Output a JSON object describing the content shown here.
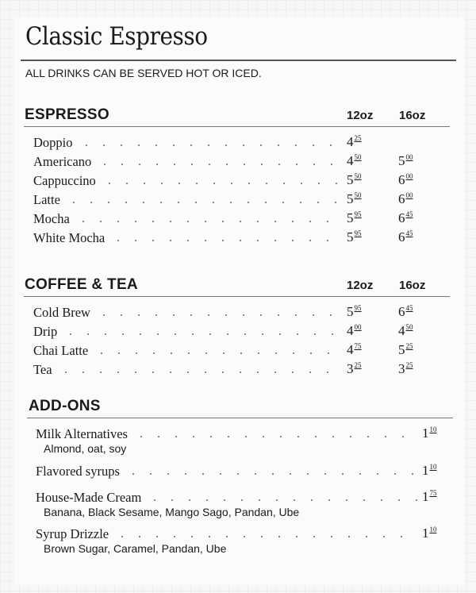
{
  "title": "Classic Espresso",
  "subtitle": "ALL DRINKS CAN BE SERVED HOT OR ICED.",
  "sections": [
    {
      "heading": "ESPRESSO",
      "col1": "12oz",
      "col2": "16oz",
      "items": [
        {
          "name": "Doppio",
          "p12": [
            "4",
            "25"
          ],
          "p16": null
        },
        {
          "name": "Americano",
          "p12": [
            "4",
            "50"
          ],
          "p16": [
            "5",
            "00"
          ]
        },
        {
          "name": "Cappuccino",
          "p12": [
            "5",
            "50"
          ],
          "p16": [
            "6",
            "00"
          ]
        },
        {
          "name": "Latte",
          "p12": [
            "5",
            "50"
          ],
          "p16": [
            "6",
            "00"
          ]
        },
        {
          "name": "Mocha",
          "p12": [
            "5",
            "95"
          ],
          "p16": [
            "6",
            "45"
          ]
        },
        {
          "name": "White Mocha",
          "p12": [
            "5",
            "95"
          ],
          "p16": [
            "6",
            "45"
          ]
        }
      ]
    },
    {
      "heading": "COFFEE & TEA",
      "col1": "12oz",
      "col2": "16oz",
      "items": [
        {
          "name": "Cold Brew",
          "p12": [
            "5",
            "95"
          ],
          "p16": [
            "6",
            "45"
          ]
        },
        {
          "name": "Drip",
          "p12": [
            "4",
            "00"
          ],
          "p16": [
            "4",
            "50"
          ]
        },
        {
          "name": "Chai Latte",
          "p12": [
            "4",
            "75"
          ],
          "p16": [
            "5",
            "25"
          ]
        },
        {
          "name": "Tea",
          "p12": [
            "3",
            "25"
          ],
          "p16": [
            "3",
            "25"
          ]
        }
      ]
    }
  ],
  "addons": {
    "heading": "ADD-ONS",
    "items": [
      {
        "name": "Milk Alternatives",
        "desc": "Almond, oat, soy",
        "price": [
          "1",
          "10"
        ]
      },
      {
        "name": "Flavored syrups",
        "desc": "",
        "price": [
          "1",
          "10"
        ]
      },
      {
        "name": "House-Made Cream",
        "desc": "Banana, Black Sesame, Mango Sago, Pandan, Ube",
        "price": [
          "1",
          "75"
        ]
      },
      {
        "name": "Syrup Drizzle",
        "desc": "Brown Sugar, Caramel, Pandan, Ube",
        "price": [
          "1",
          "10"
        ]
      }
    ]
  }
}
